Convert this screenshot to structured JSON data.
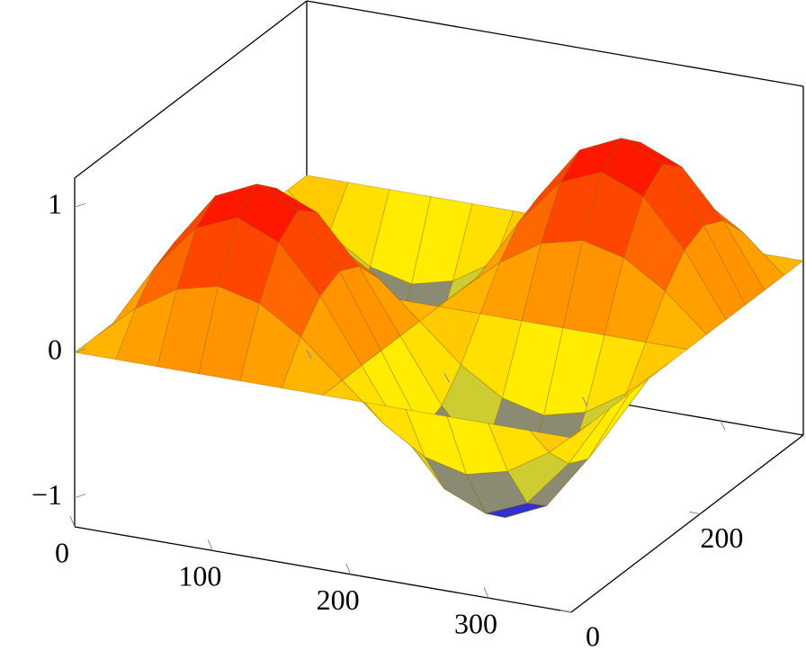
{
  "chart_data": {
    "type": "surface",
    "x": [
      0,
      30,
      60,
      90,
      120,
      150,
      180,
      210,
      240,
      270,
      300,
      330,
      360
    ],
    "y": [
      0,
      30,
      60,
      90,
      120,
      150,
      180,
      210,
      240,
      270,
      300,
      330,
      360
    ],
    "z": [
      [
        0,
        0,
        0,
        0,
        0,
        0,
        0,
        0,
        0,
        0,
        0,
        0,
        0
      ],
      [
        0,
        0.25,
        0.43,
        0.5,
        0.43,
        0.25,
        0,
        -0.25,
        -0.43,
        -0.5,
        -0.43,
        -0.25,
        0
      ],
      [
        0,
        0.43,
        0.75,
        0.87,
        0.75,
        0.43,
        0,
        -0.43,
        -0.75,
        -0.87,
        -0.75,
        -0.43,
        0
      ],
      [
        0,
        0.5,
        0.87,
        1,
        0.87,
        0.5,
        0,
        -0.5,
        -0.87,
        -1,
        -0.87,
        -0.5,
        0
      ],
      [
        0,
        0.43,
        0.75,
        0.87,
        0.75,
        0.43,
        0,
        -0.43,
        -0.75,
        -0.87,
        -0.75,
        -0.43,
        0
      ],
      [
        0,
        0.25,
        0.43,
        0.5,
        0.43,
        0.25,
        0,
        -0.25,
        -0.43,
        -0.5,
        -0.43,
        -0.25,
        0
      ],
      [
        0,
        0,
        0,
        0,
        0,
        0,
        0,
        0,
        0,
        0,
        0,
        0,
        0
      ],
      [
        0,
        -0.25,
        -0.43,
        -0.5,
        -0.43,
        -0.25,
        0,
        0.25,
        0.43,
        0.5,
        0.43,
        0.25,
        0
      ],
      [
        0,
        -0.43,
        -0.75,
        -0.87,
        -0.75,
        -0.43,
        0,
        0.43,
        0.75,
        0.87,
        0.75,
        0.43,
        0
      ],
      [
        0,
        -0.5,
        -0.87,
        -1,
        -0.87,
        -0.5,
        0,
        0.5,
        0.87,
        1,
        0.87,
        0.5,
        0
      ],
      [
        0,
        -0.43,
        -0.75,
        -0.87,
        -0.75,
        -0.43,
        0,
        0.43,
        0.75,
        0.87,
        0.75,
        0.43,
        0
      ],
      [
        0,
        -0.25,
        -0.43,
        -0.5,
        -0.43,
        -0.25,
        0,
        0.25,
        0.43,
        0.5,
        0.43,
        0.25,
        0
      ],
      [
        0,
        0,
        0,
        0,
        0,
        0,
        0,
        0,
        0,
        0,
        0,
        0,
        0
      ]
    ],
    "colormap": [
      "#0000ff",
      "#ffff00",
      "#ff8000",
      "#ff0000"
    ],
    "xlim": [
      0,
      360
    ],
    "ylim": [
      0,
      360
    ],
    "zlim": [
      -1.2,
      1.2
    ],
    "xticks": [
      0,
      100,
      200,
      300
    ],
    "yticks": [
      0,
      200
    ],
    "zticks": [
      {
        "value": -1,
        "label": "−1"
      },
      0,
      1
    ]
  }
}
